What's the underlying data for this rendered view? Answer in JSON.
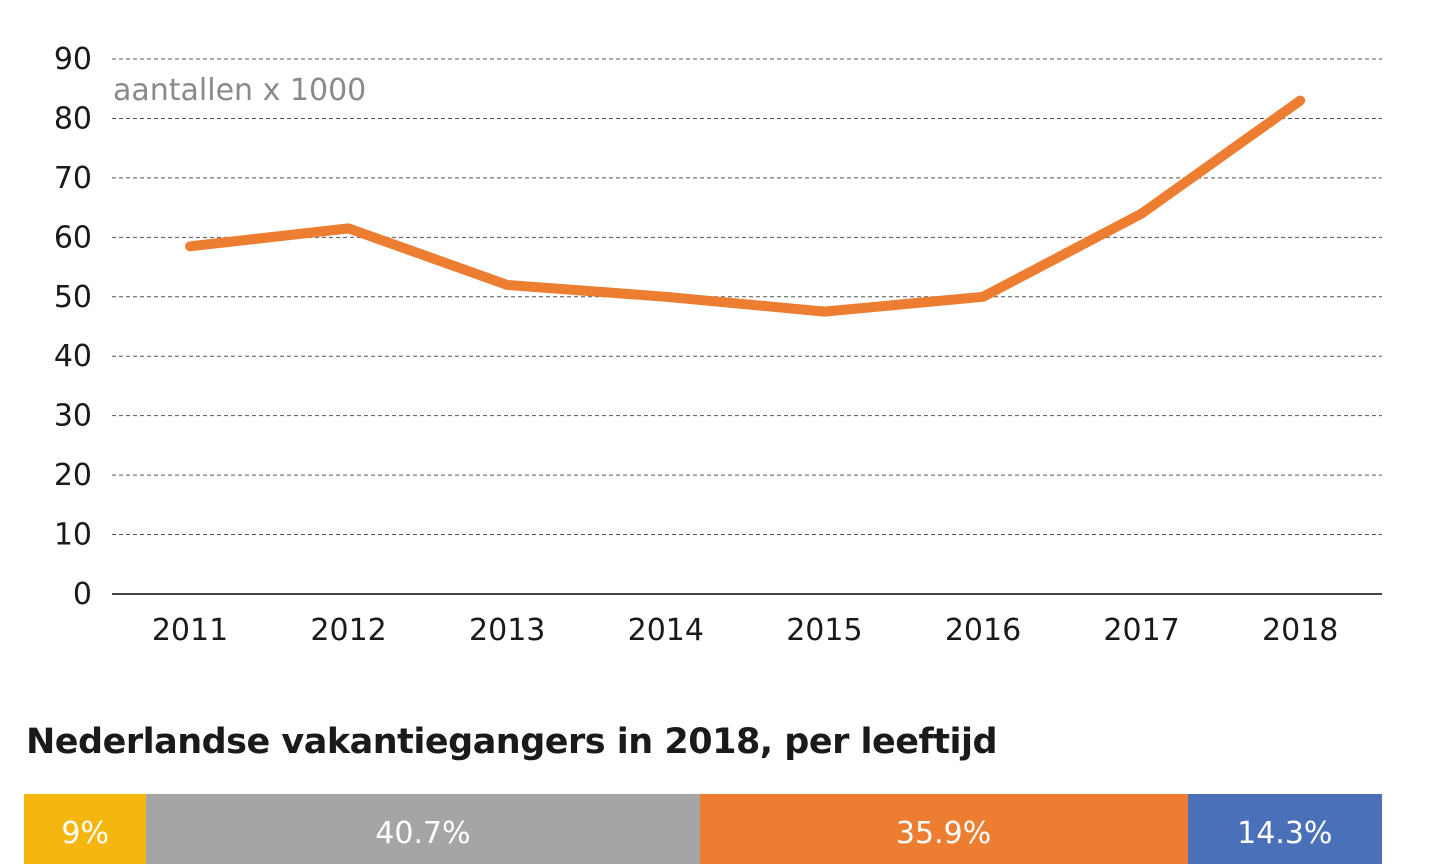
{
  "chart_data": [
    {
      "type": "line",
      "title": "",
      "unit_label": "aantallen x 1000",
      "xlabel": "",
      "ylabel": "",
      "x": [
        "2011",
        "2012",
        "2013",
        "2014",
        "2015",
        "2016",
        "2017",
        "2018"
      ],
      "series": [
        {
          "values": [
            58.5,
            61.5,
            52,
            50,
            47.5,
            50,
            64,
            83
          ],
          "color": "#ED7D31"
        }
      ],
      "ylim": [
        0,
        90
      ],
      "yticks": [
        0,
        10,
        20,
        30,
        40,
        50,
        60,
        70,
        80,
        90
      ],
      "grid": true,
      "legend": "none"
    },
    {
      "type": "bar",
      "orientation": "horizontal-stacked-100",
      "title": "Nederlandse vakantiegangers in 2018, per leeftijd",
      "segments": [
        {
          "value": 9,
          "label": "9%",
          "color": "#F5B70F"
        },
        {
          "value": 40.7,
          "label": "40.7%",
          "color": "#A5A5A5"
        },
        {
          "value": 35.9,
          "label": "35.9%",
          "color": "#ED7D31"
        },
        {
          "value": 14.3,
          "label": "14.3%",
          "color": "#4A70B9"
        }
      ]
    }
  ]
}
